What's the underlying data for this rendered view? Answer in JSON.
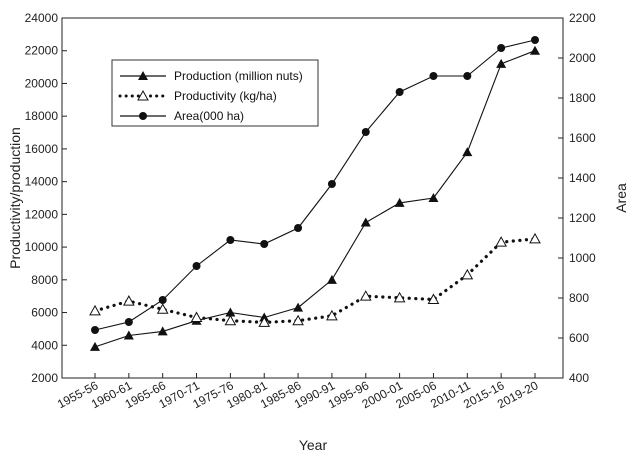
{
  "chart_data": {
    "type": "line",
    "xlabel": "Year",
    "ylabel_left": "Productivity/production",
    "ylabel_right": "Area",
    "ylim_left": [
      2000,
      24000
    ],
    "ylim_right": [
      400,
      2200
    ],
    "yticks_left": [
      "2000",
      "4000",
      "6000",
      "8000",
      "10000",
      "12000",
      "14000",
      "16000",
      "18000",
      "20000",
      "22000",
      "24000"
    ],
    "yticks_right": [
      "400",
      "600",
      "800",
      "1000",
      "1200",
      "1400",
      "1600",
      "1800",
      "2000",
      "2200"
    ],
    "categories": [
      "1955-56",
      "1960-61",
      "1965-66",
      "1970-71",
      "1975-76",
      "1980-81",
      "1985-86",
      "1990-91",
      "1995-96",
      "2000-01",
      "2005-06",
      "2010-11",
      "2015-16",
      "2019-20"
    ],
    "grid": false,
    "legend_position": "top-left",
    "series": [
      {
        "name": "Production (million nuts)",
        "axis": "left",
        "marker": "filled-triangle",
        "line": "solid",
        "values": [
          3900,
          4600,
          4850,
          5500,
          6000,
          5700,
          6300,
          8000,
          11500,
          12700,
          13000,
          15800,
          21200,
          22000
        ]
      },
      {
        "name": "Productivity (kg/ha)",
        "axis": "left",
        "marker": "open-triangle",
        "line": "dotted",
        "values": [
          6100,
          6700,
          6200,
          5700,
          5500,
          5400,
          5500,
          5800,
          7000,
          6900,
          6800,
          8300,
          10300,
          10500
        ]
      },
      {
        "name": "Area(000 ha)",
        "axis": "right",
        "marker": "filled-circle",
        "line": "solid",
        "values": [
          640,
          680,
          790,
          960,
          1090,
          1070,
          1150,
          1370,
          1630,
          1830,
          1910,
          1910,
          2050,
          2090
        ]
      }
    ]
  }
}
